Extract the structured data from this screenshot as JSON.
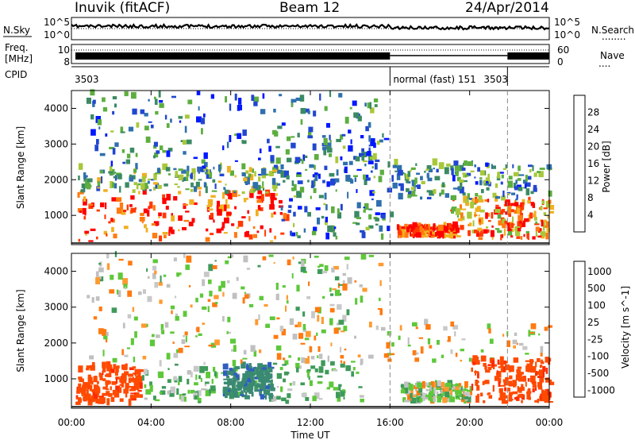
{
  "header": {
    "station": "Inuvik (fitACF)",
    "beam": "Beam 12",
    "date": "24/Apr/2014"
  },
  "status_panels": {
    "nsky_label": "N.Sky",
    "nsky_ticks": [
      "10^5",
      "10^0"
    ],
    "nsearch_label": "N.Search",
    "nsearch_ticks": [
      "10^5",
      "10^0"
    ],
    "freq_label": [
      "Freq.",
      "[MHz]"
    ],
    "freq_ticks": [
      "10",
      "8"
    ],
    "nave_label": "Nave",
    "nave_ticks": [
      "60",
      "0"
    ],
    "cpid_label": "CPID",
    "cpid_segments": [
      {
        "label": "3503",
        "start_hour": 0,
        "end_hour": 16
      },
      {
        "label": "normal (fast) 151",
        "start_hour": 16,
        "end_hour": 21.9
      },
      {
        "label": "3503",
        "start_hour": 21.9,
        "end_hour": 24
      }
    ],
    "legend_marks": [
      "........",
      "...."
    ]
  },
  "time_axis": {
    "label": "Time UT",
    "range_hours": [
      0,
      24
    ],
    "tick_labels": [
      "00:00",
      "04:00",
      "08:00",
      "12:00",
      "16:00",
      "20:00",
      "00:00"
    ],
    "marker_hours": [
      16,
      21.9
    ]
  },
  "chart_data": [
    {
      "type": "heatmap",
      "quantity": "power",
      "ylabel": "Slant Range [km]",
      "ylim": [
        180,
        4500
      ],
      "yticks": [
        1000,
        2000,
        3000,
        4000
      ],
      "colorbar_label": "Power [dB]",
      "colorbar_ticks": [
        4,
        8,
        12,
        16,
        20,
        24,
        28
      ],
      "colorbar_colors": [
        "#0018ff",
        "#2147d0",
        "#2f6fae",
        "#3b8a63",
        "#5dae3f",
        "#a8c83a",
        "#f0b020",
        "#ff7a10",
        "#ff3a00",
        "#ff0000"
      ],
      "regions": [
        {
          "t": [
            0.3,
            10.8
          ],
          "r": [
            250,
            1600
          ],
          "power": 28
        },
        {
          "t": [
            0.3,
            10.5
          ],
          "r": [
            1600,
            2300
          ],
          "power": 14
        },
        {
          "t": [
            10.5,
            16.0
          ],
          "r": [
            300,
            3200
          ],
          "power": 10
        },
        {
          "t": [
            16.3,
            19.3
          ],
          "r": [
            350,
            650
          ],
          "power": 28
        },
        {
          "t": [
            19.0,
            24.0
          ],
          "r": [
            300,
            1400
          ],
          "power": 24
        },
        {
          "t": [
            16.0,
            24.0
          ],
          "r": [
            1400,
            2400
          ],
          "power": 12
        },
        {
          "t": [
            0.5,
            15.5
          ],
          "r": [
            2300,
            4400
          ],
          "power": 10
        }
      ]
    },
    {
      "type": "heatmap",
      "quantity": "velocity",
      "ylabel": "Slant Range [km]",
      "ylim": [
        180,
        4500
      ],
      "yticks": [
        1000,
        2000,
        3000,
        4000
      ],
      "colorbar_label": "Velocity [m s^-1]",
      "colorbar_ticks": [
        1000,
        500,
        100,
        25,
        -25,
        -100,
        -500,
        -1000
      ],
      "colorbar_colors": [
        "#1c3fb8",
        "#2f5dc0",
        "#3a8a72",
        "#3f9a5a",
        "#5ec83a",
        "#c8c8c8",
        "#c0c0c0",
        "#ff9a30",
        "#ff7a10",
        "#ff4a00",
        "#ff2a00",
        "#ff0000"
      ],
      "regions": [
        {
          "t": [
            0.2,
            3.5
          ],
          "r": [
            250,
            1300
          ],
          "velocity": -300
        },
        {
          "t": [
            3.5,
            14.5
          ],
          "r": [
            300,
            1400
          ],
          "velocity": 150
        },
        {
          "t": [
            7.6,
            10.0
          ],
          "r": [
            400,
            1300
          ],
          "velocity": 700
        },
        {
          "t": [
            0.5,
            24.0
          ],
          "r": [
            1400,
            2500
          ],
          "velocity": 0
        },
        {
          "t": [
            16.5,
            20.0
          ],
          "r": [
            300,
            800
          ],
          "velocity": 60
        },
        {
          "t": [
            20.0,
            24.0
          ],
          "r": [
            300,
            1500
          ],
          "velocity": -300
        },
        {
          "t": [
            0.5,
            15.5
          ],
          "r": [
            2500,
            4400
          ],
          "velocity": 40
        }
      ]
    }
  ]
}
